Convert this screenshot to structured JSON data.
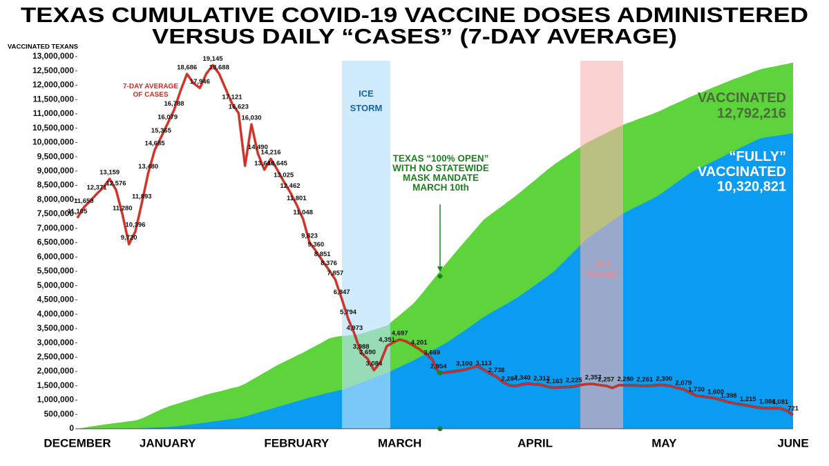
{
  "chart_data": {
    "type": "area",
    "title": [
      "TEXAS CUMULATIVE COVID-19 VACCINE DOSES ADMINISTERED",
      "VERSUS DAILY “CASES” (7-DAY AVERAGE)"
    ],
    "y_label": "VACCINATED TEXANS",
    "categories": [
      "DECEMBER",
      null,
      null,
      null,
      null,
      null,
      null,
      null,
      null,
      null,
      null,
      null,
      null,
      null,
      "JANUARY",
      null,
      null,
      null,
      null,
      null,
      null,
      null,
      null,
      null,
      null,
      null,
      null,
      null,
      null,
      null,
      null,
      null,
      null,
      null,
      "FEBRUARY",
      null,
      null,
      null,
      null,
      null,
      null,
      null,
      null,
      null,
      null,
      null,
      null,
      null,
      null,
      null,
      "MARCH",
      null,
      null,
      null,
      null,
      null,
      null,
      null,
      null,
      null,
      null,
      null,
      null,
      null,
      null,
      null,
      null,
      null,
      null,
      null,
      null,
      "APRIL",
      null,
      null,
      null,
      null,
      null,
      null,
      null,
      null,
      null,
      null,
      null,
      null,
      null,
      null,
      null,
      null,
      null,
      null,
      null,
      "MAY",
      null,
      null,
      null,
      null,
      null,
      null,
      null,
      null,
      null,
      null,
      null,
      null,
      null,
      null,
      null,
      null,
      null,
      null,
      null,
      "JUNE"
    ],
    "ylim": [
      0,
      13000000
    ],
    "yticks": [
      0,
      {
        "value": 500000,
        "label": "500,000"
      },
      {
        "value": 1000000,
        "label": "1,000,000"
      },
      {
        "value": 1500000,
        "label": "1,500,000"
      },
      {
        "value": 2000000,
        "label": "2,000,000"
      },
      {
        "value": 2500000,
        "label": "2,500,000"
      },
      {
        "value": 3000000,
        "label": "3,000,000"
      },
      {
        "value": 3500000,
        "label": "3,500,000"
      },
      {
        "value": 4000000,
        "label": "4,000,000"
      },
      {
        "value": 4500000,
        "label": "4,500,000"
      },
      {
        "value": 5000000,
        "label": "5,000,000"
      },
      {
        "value": 5500000,
        "label": "5,500,000"
      },
      {
        "value": 6000000,
        "label": "6,000,000"
      },
      {
        "value": 6500000,
        "label": "6,500,000"
      },
      {
        "value": 7000000,
        "label": "7,000,000"
      },
      {
        "value": 7500000,
        "label": "7,500,000"
      },
      {
        "value": 8000000,
        "label": "8,000,000"
      },
      {
        "value": 8500000,
        "label": "8,500,000"
      },
      {
        "value": 9000000,
        "label": "9,000,000"
      },
      {
        "value": 9500000,
        "label": "9,500,000"
      },
      {
        "value": 10000000,
        "label": "10,000,000"
      },
      {
        "value": 10500000,
        "label": "10,500,000"
      },
      {
        "value": 11000000,
        "label": "11,000,000"
      },
      {
        "value": 11500000,
        "label": "11,500,000"
      },
      {
        "value": 12000000,
        "label": "12,000,000"
      },
      {
        "value": 12500000,
        "label": "12,500,000"
      },
      {
        "value": 13000000,
        "label": "13,000,000"
      }
    ],
    "y2lim": [
      0,
      19600
    ],
    "grid": false,
    "series": [
      {
        "name": "VACCINATED",
        "type": "area",
        "color": "#5dd43b",
        "end_label": "12,792,216",
        "values": [
          0,
          36000,
          74000,
          107000,
          143000,
          172000,
          201000,
          230000,
          259000,
          288000,
          360000,
          465000,
          570000,
          675000,
          770000,
          840000,
          910000,
          980000,
          1050000,
          1120000,
          1190000,
          1250000,
          1300000,
          1360000,
          1420000,
          1470000,
          1570000,
          1700000,
          1830000,
          1960000,
          2090000,
          2220000,
          2330000,
          2440000,
          2550000,
          2660000,
          2780000,
          2900000,
          3020000,
          3150000,
          3210000,
          3240000,
          3260000,
          3280000,
          3320000,
          3390000,
          3460000,
          3530000,
          3600000,
          3790000,
          3970000,
          4160000,
          4350000,
          4600000,
          4880000,
          5160000,
          5440000,
          5720000,
          5990000,
          6260000,
          6520000,
          6780000,
          7040000,
          7300000,
          7470000,
          7640000,
          7800000,
          7970000,
          8140000,
          8320000,
          8510000,
          8690000,
          8880000,
          9070000,
          9240000,
          9390000,
          9540000,
          9690000,
          9840000,
          9990000,
          10100000,
          10220000,
          10330000,
          10440000,
          10550000,
          10650000,
          10730000,
          10820000,
          10900000,
          10980000,
          11070000,
          11170000,
          11280000,
          11380000,
          11480000,
          11590000,
          11680000,
          11770000,
          11870000,
          11960000,
          12050000,
          12140000,
          12230000,
          12310000,
          12390000,
          12480000,
          12560000,
          12610000,
          12650000,
          12700000,
          12740000,
          12792216
        ]
      },
      {
        "name": "“FULLY”\nVACCINATED",
        "type": "area",
        "color": "#0a9cf0",
        "end_label": "10,320,821",
        "values": [
          0,
          0,
          0,
          0,
          0,
          2000,
          4000,
          6000,
          7000,
          9000,
          16000,
          28000,
          39000,
          50000,
          61000,
          76000,
          104000,
          132000,
          160000,
          188000,
          216000,
          247000,
          279000,
          311000,
          342000,
          374000,
          424000,
          490000,
          560000,
          630000,
          690000,
          760000,
          820000,
          890000,
          960000,
          1020000,
          1090000,
          1140000,
          1200000,
          1260000,
          1310000,
          1370000,
          1440000,
          1520000,
          1610000,
          1690000,
          1780000,
          1860000,
          1950000,
          2050000,
          2160000,
          2270000,
          2370000,
          2490000,
          2610000,
          2730000,
          2850000,
          2970000,
          3110000,
          3270000,
          3420000,
          3580000,
          3740000,
          3900000,
          4030000,
          4160000,
          4290000,
          4420000,
          4550000,
          4700000,
          4860000,
          5020000,
          5180000,
          5340000,
          5510000,
          5740000,
          5960000,
          6190000,
          6410000,
          6630000,
          6800000,
          6960000,
          7110000,
          7270000,
          7430000,
          7560000,
          7680000,
          7790000,
          7900000,
          8010000,
          8130000,
          8290000,
          8450000,
          8610000,
          8770000,
          8930000,
          9050000,
          9160000,
          9270000,
          9380000,
          9490000,
          9610000,
          9720000,
          9830000,
          9940000,
          10050000,
          10150000,
          10190000,
          10220000,
          10250000,
          10290000,
          10320821
        ]
      },
      {
        "name": "7-DAY AVERAGE\nOF CASES",
        "type": "line",
        "axis": "y2",
        "color": "#e3261c",
        "values": [
          11105,
          11659,
          12000,
          12371,
          12700,
          13159,
          12576,
          11280,
          9720,
          10396,
          11893,
          13480,
          14685,
          15365,
          16079,
          16788,
          17800,
          18686,
          18200,
          17946,
          18700,
          19145,
          18688,
          17900,
          17121,
          16623,
          13850,
          16030,
          14490,
          13646,
          14216,
          13645,
          13025,
          12462,
          11801,
          11048,
          9823,
          9360,
          8851,
          8376,
          7857,
          6847,
          5794,
          4973,
          3988,
          3690,
          3084,
          3500,
          4351,
          4550,
          4697,
          4600,
          4400,
          4201,
          3950,
          3669,
          2954,
          2960,
          3000,
          3050,
          3100,
          3200,
          3300,
          3113,
          2900,
          2738,
          2450,
          2284,
          2250,
          2340,
          2380,
          2330,
          2312,
          2200,
          2163,
          2180,
          2200,
          2225,
          2300,
          2350,
          2357,
          2300,
          2257,
          2150,
          2300,
          2280,
          2290,
          2270,
          2261,
          2270,
          2300,
          2300,
          2250,
          2150,
          2079,
          1900,
          1730,
          1700,
          1650,
          1600,
          1500,
          1398,
          1330,
          1270,
          1215,
          1150,
          1100,
          1084,
          1080,
          1081,
          950,
          721
        ],
        "value_labels": [
          "11,105",
          "11,659",
          null,
          "12,371",
          null,
          "13,159",
          "12,576",
          "11,280",
          "9,720",
          "10,396",
          "11,893",
          "13,480",
          "14,685",
          "15,365",
          "16,079",
          "16,788",
          null,
          "18,686",
          null,
          "17,946",
          null,
          "19,145",
          "18,688",
          null,
          "17,121",
          "16,623",
          null,
          "16,030",
          "14,490",
          "13,646",
          "14,216",
          "13,645",
          "13,025",
          "12,462",
          "11,801",
          "11,048",
          "9,823",
          "9,360",
          "8,851",
          "8,376",
          "7,857",
          "6,847",
          "5,794",
          "4,973",
          "3,988",
          "3,690",
          "3,084",
          null,
          "4,351",
          null,
          "4,697",
          null,
          null,
          "4,201",
          null,
          "3,669",
          "2,954",
          null,
          null,
          null,
          "3,100",
          null,
          null,
          "3,113",
          null,
          "2,738",
          null,
          "2,284",
          null,
          "2,340",
          null,
          null,
          "2,312",
          null,
          "2,163",
          null,
          null,
          "2,225",
          null,
          null,
          "2,357",
          null,
          "2,257",
          null,
          null,
          "2,280",
          null,
          null,
          "2,261",
          null,
          null,
          "2,300",
          null,
          null,
          "2,079",
          null,
          "1,730",
          null,
          null,
          "1,600",
          null,
          "1,398",
          null,
          null,
          "1,215",
          null,
          null,
          "1,084",
          null,
          "1,081",
          null,
          "721"
        ]
      }
    ],
    "annotations": [
      {
        "text": "ICE\nSTORM",
        "color": "#1565a8"
      },
      {
        "text": "TEXAS “100% OPEN”\nWITH NO STATEWIDE\nMASK MANDATE\nMARCH 10th",
        "color": "#1e7f1e"
      },
      {
        "text": "J&J\n“PAUSE”",
        "color": "#f08a8a"
      }
    ]
  }
}
